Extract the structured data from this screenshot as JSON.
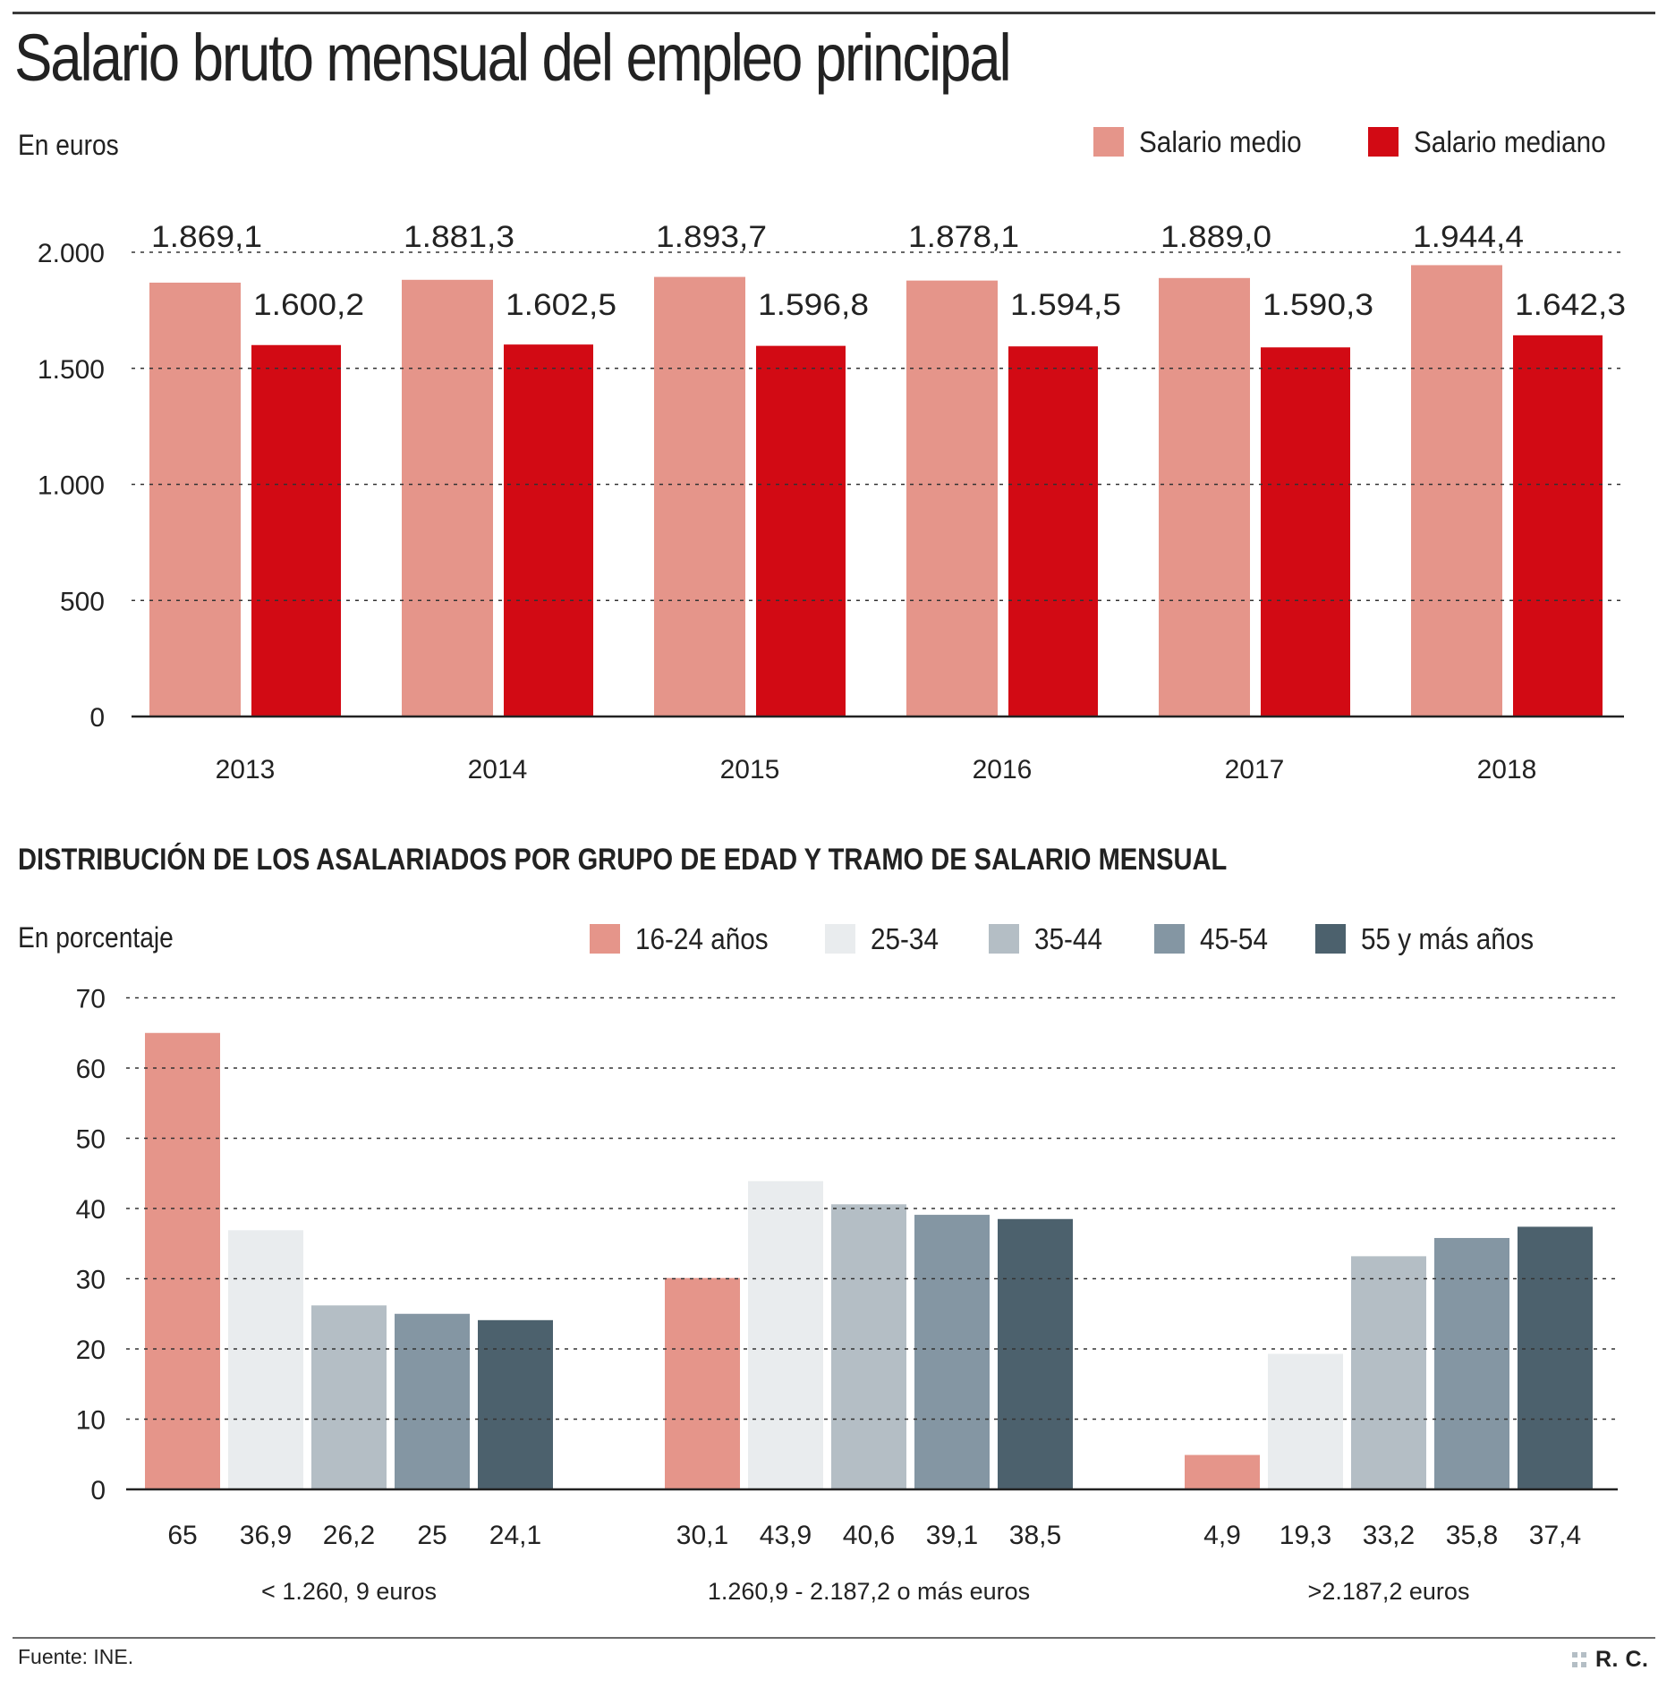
{
  "header": {
    "title": "Salario bruto mensual del empleo principal"
  },
  "chart_data": [
    {
      "type": "bar",
      "title": "Salario bruto mensual del empleo principal",
      "ylabel": "En euros",
      "xlabel": "",
      "categories": [
        "2013",
        "2014",
        "2015",
        "2016",
        "2017",
        "2018"
      ],
      "series": [
        {
          "name": "Salario medio",
          "color": "#e5958a",
          "values": [
            1869.1,
            1881.3,
            1893.7,
            1878.1,
            1889.0,
            1944.4
          ],
          "labels": [
            "1.869,1",
            "1.881,3",
            "1.893,7",
            "1.878,1",
            "1.889,0",
            "1.944,4"
          ]
        },
        {
          "name": "Salario mediano",
          "color": "#d20a14",
          "values": [
            1600.2,
            1602.5,
            1596.8,
            1594.5,
            1590.3,
            1642.3
          ],
          "labels": [
            "1.600,2",
            "1.602,5",
            "1.596,8",
            "1.594,5",
            "1.590,3",
            "1.642,3"
          ]
        }
      ],
      "ylim": [
        0,
        2000
      ],
      "yticks": [
        0,
        500,
        1000,
        1500,
        2000
      ],
      "ytick_labels": [
        "0",
        "500",
        "1.000",
        "1.500",
        "2.000"
      ],
      "grid": true,
      "legend": "top-right"
    },
    {
      "type": "bar",
      "title": "DISTRIBUCIÓN DE LOS ASALARIADOS POR GRUPO DE EDAD Y TRAMO DE SALARIO MENSUAL",
      "ylabel": "En porcentaje",
      "xlabel": "",
      "categories": [
        "< 1.260, 9 euros",
        "1.260,9 - 2.187,2 o más euros",
        ">2.187,2 euros"
      ],
      "series": [
        {
          "name": "16-24 años",
          "color": "#e5958a",
          "values": [
            65,
            30.1,
            4.9
          ],
          "labels": [
            "65",
            "30,1",
            "4,9"
          ]
        },
        {
          "name": "25-34",
          "color": "#e9ecee",
          "values": [
            36.9,
            43.9,
            19.3
          ],
          "labels": [
            "36,9",
            "43,9",
            "19,3"
          ]
        },
        {
          "name": "35-44",
          "color": "#b4bec5",
          "values": [
            26.2,
            40.6,
            33.2
          ],
          "labels": [
            "26,2",
            "40,6",
            "33,2"
          ]
        },
        {
          "name": "45-54",
          "color": "#8496a3",
          "values": [
            25,
            39.1,
            35.8
          ],
          "labels": [
            "25",
            "39,1",
            "35,8"
          ]
        },
        {
          "name": "55 y más años",
          "color": "#4c616d",
          "values": [
            24.1,
            38.5,
            37.4
          ],
          "labels": [
            "24,1",
            "38,5",
            "37,4"
          ]
        }
      ],
      "ylim": [
        0,
        70
      ],
      "yticks": [
        0,
        10,
        20,
        30,
        40,
        50,
        60,
        70
      ],
      "ytick_labels": [
        "0",
        "10",
        "20",
        "30",
        "40",
        "50",
        "60",
        "70"
      ],
      "grid": true,
      "legend": "top"
    }
  ],
  "footer": {
    "source": "Fuente: INE.",
    "credit": "R. C."
  }
}
